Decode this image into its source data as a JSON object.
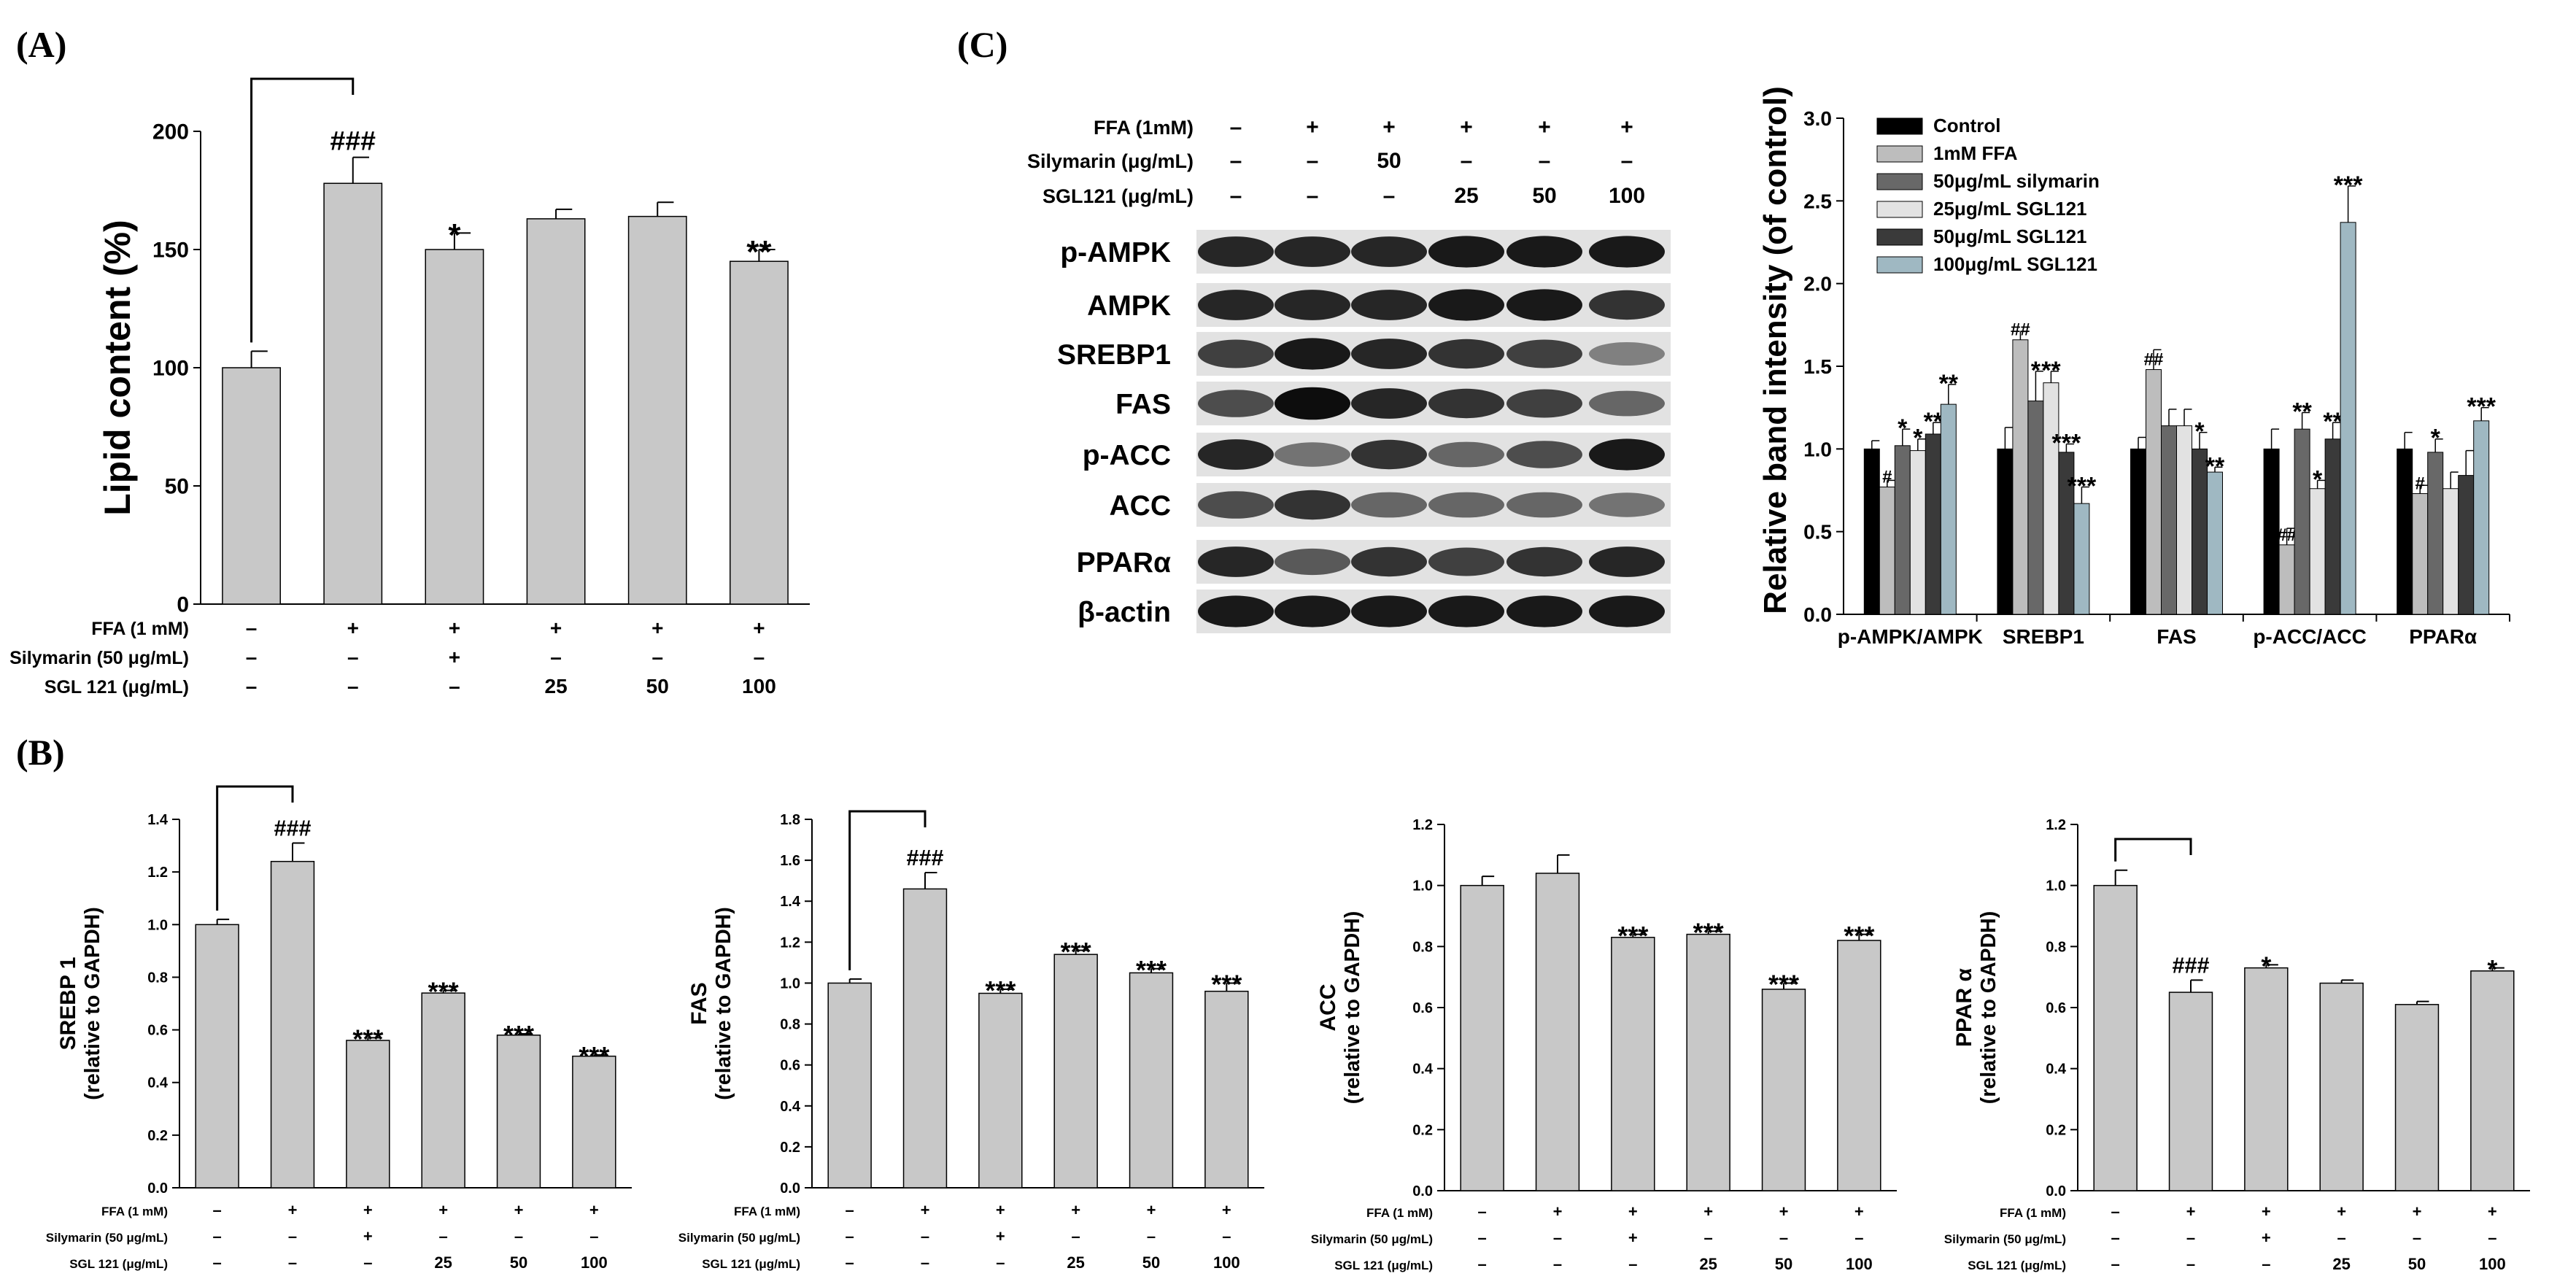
{
  "panels": [
    {
      "label": "(A)"
    },
    {
      "label": "(B)"
    },
    {
      "label": "(C)"
    }
  ],
  "treatment_labels": {
    "ffa": "FFA (1 mM)",
    "silymarin": "Silymarin (50 μg/mL)",
    "sgl": "SGL 121 (μg/mL)"
  },
  "treatment_table": {
    "ffa": [
      "–",
      "+",
      "+",
      "+",
      "+",
      "+"
    ],
    "silymarin": [
      "–",
      "–",
      "+",
      "–",
      "–",
      "–"
    ],
    "sgl": [
      "–",
      "–",
      "–",
      "25",
      "50",
      "100"
    ]
  },
  "blot": {
    "ffa_label": "FFA (1mM)",
    "silymarin_label": "Silymarin (μg/mL)",
    "sgl_label": "SGL121 (μg/mL)",
    "ffa": [
      "–",
      "+",
      "+",
      "+",
      "+",
      "+"
    ],
    "silymarin": [
      "–",
      "–",
      "50",
      "–",
      "–",
      "–"
    ],
    "sgl": [
      "–",
      "–",
      "–",
      "25",
      "50",
      "100"
    ],
    "bands": [
      {
        "name": "p-AMPK",
        "intensity": [
          0.85,
          0.85,
          0.85,
          0.9,
          0.9,
          0.9
        ]
      },
      {
        "name": "AMPK",
        "intensity": [
          0.85,
          0.85,
          0.85,
          0.9,
          0.9,
          0.8
        ]
      },
      {
        "name": "SREBP1",
        "intensity": [
          0.75,
          0.9,
          0.85,
          0.8,
          0.75,
          0.5
        ]
      },
      {
        "name": "FAS",
        "intensity": [
          0.7,
          0.95,
          0.85,
          0.8,
          0.75,
          0.6
        ]
      },
      {
        "name": "p-ACC",
        "intensity": [
          0.85,
          0.55,
          0.8,
          0.6,
          0.7,
          0.9
        ]
      },
      {
        "name": "ACC",
        "intensity": [
          0.7,
          0.8,
          0.6,
          0.6,
          0.6,
          0.55
        ]
      },
      {
        "name": "PPARα",
        "intensity": [
          0.85,
          0.65,
          0.8,
          0.75,
          0.8,
          0.85
        ]
      },
      {
        "name": "β-actin",
        "intensity": [
          0.9,
          0.9,
          0.9,
          0.9,
          0.9,
          0.9
        ]
      }
    ]
  },
  "colors": {
    "bar_gray": "#c8c8c8",
    "axis": "#000000",
    "series_c": [
      "#000000",
      "#bdbdbd",
      "#686868",
      "#e2e2e2",
      "#3a3a3a",
      "#9fb8c2"
    ]
  },
  "chart_data": [
    {
      "id": "A",
      "type": "bar",
      "ylabel": "Lipid content (%)",
      "ylim": [
        0,
        200
      ],
      "yticks": [
        0,
        50,
        100,
        150,
        200
      ],
      "values": [
        100,
        178,
        150,
        163,
        164,
        145
      ],
      "errors": [
        7,
        11,
        7,
        4,
        6,
        5
      ],
      "annotations": [
        "",
        "###",
        "*",
        "",
        "",
        "**"
      ]
    },
    {
      "id": "B1",
      "type": "bar",
      "ylabel": "SREBP 1",
      "ylabel2": "(relative to GAPDH)",
      "ylim": [
        0,
        1.4
      ],
      "yticks": [
        "0.0",
        "0.2",
        "0.4",
        "0.6",
        "0.8",
        "1.0",
        "1.2",
        "1.4"
      ],
      "values": [
        1.0,
        1.24,
        0.56,
        0.74,
        0.58,
        0.5
      ],
      "errors": [
        0.02,
        0.07,
        0.01,
        0.01,
        0.005,
        0.005
      ],
      "annotations": [
        "",
        "###",
        "***",
        "***",
        "***",
        "***"
      ]
    },
    {
      "id": "B2",
      "type": "bar",
      "ylabel": "FAS",
      "ylabel2": "(relative to GAPDH)",
      "ylim": [
        0,
        1.8
      ],
      "yticks": [
        "0.0",
        "0.2",
        "0.4",
        "0.6",
        "0.8",
        "1.0",
        "1.2",
        "1.4",
        "1.6",
        "1.8"
      ],
      "values": [
        1.0,
        1.46,
        0.95,
        1.14,
        1.05,
        0.96
      ],
      "errors": [
        0.02,
        0.08,
        0.02,
        0.02,
        0.02,
        0.04
      ],
      "annotations": [
        "",
        "###",
        "***",
        "***",
        "***",
        "***"
      ]
    },
    {
      "id": "B3",
      "type": "bar",
      "ylabel": "ACC",
      "ylabel2": "(relative to GAPDH)",
      "ylim": [
        0,
        1.2
      ],
      "yticks": [
        "0.0",
        "0.2",
        "0.4",
        "0.6",
        "0.8",
        "1.0",
        "1.2"
      ],
      "values": [
        1.0,
        1.04,
        0.83,
        0.84,
        0.66,
        0.82
      ],
      "errors": [
        0.03,
        0.06,
        0.01,
        0.01,
        0.02,
        0.02
      ],
      "annotations": [
        "",
        "",
        "***",
        "***",
        "***",
        "***"
      ]
    },
    {
      "id": "B4",
      "type": "bar",
      "ylabel": "PPAR α",
      "ylabel2": "(relative to GAPDH)",
      "ylim": [
        0,
        1.2
      ],
      "yticks": [
        "0.0",
        "0.2",
        "0.4",
        "0.6",
        "0.8",
        "1.0",
        "1.2"
      ],
      "values": [
        1.0,
        0.65,
        0.73,
        0.68,
        0.61,
        0.72
      ],
      "errors": [
        0.05,
        0.04,
        0.01,
        0.01,
        0.01,
        0.01
      ],
      "annotations": [
        "",
        "###",
        "*",
        "",
        "",
        "*"
      ]
    },
    {
      "id": "C",
      "type": "bar",
      "ylabel": "Relative band intensity (of control)",
      "ylim": [
        0,
        3.0
      ],
      "yticks": [
        "0.0",
        "0.5",
        "1.0",
        "1.5",
        "2.0",
        "2.5",
        "3.0"
      ],
      "categories": [
        "p-AMPK/AMPK",
        "SREBP1",
        "FAS",
        "p-ACC/ACC",
        "PPARα"
      ],
      "legend_position": "top-left",
      "series": [
        {
          "name": "Control",
          "values": [
            1.0,
            1.0,
            1.0,
            1.0,
            1.0
          ],
          "errors": [
            0.05,
            0.13,
            0.07,
            0.12,
            0.1
          ],
          "annotations": [
            "",
            "",
            "",
            "",
            ""
          ]
        },
        {
          "name": "1mM FFA",
          "values": [
            0.77,
            1.66,
            1.48,
            0.42,
            0.73
          ],
          "errors": [
            0.04,
            0.05,
            0.12,
            0.1,
            0.05
          ],
          "annotations": [
            "#",
            "##",
            "##",
            "##",
            "#"
          ]
        },
        {
          "name": "50μg/mL silymarin",
          "values": [
            1.02,
            1.29,
            1.14,
            1.12,
            0.98
          ],
          "errors": [
            0.1,
            0.18,
            0.1,
            0.1,
            0.08
          ],
          "annotations": [
            "*",
            "*",
            "",
            "**",
            "*"
          ]
        },
        {
          "name": "25μg/mL SGL121",
          "values": [
            0.99,
            1.4,
            1.14,
            0.76,
            0.76
          ],
          "errors": [
            0.07,
            0.07,
            0.1,
            0.05,
            0.1
          ],
          "annotations": [
            "*",
            "**",
            "",
            "*",
            ""
          ]
        },
        {
          "name": "50μg/mL SGL121",
          "values": [
            1.09,
            0.98,
            1.0,
            1.06,
            0.84
          ],
          "errors": [
            0.07,
            0.05,
            0.1,
            0.1,
            0.15
          ],
          "annotations": [
            "**",
            "***",
            "*",
            "**",
            ""
          ]
        },
        {
          "name": "100μg/mL SGL121",
          "values": [
            1.27,
            0.67,
            0.86,
            2.37,
            1.17
          ],
          "errors": [
            0.12,
            0.1,
            0.03,
            0.22,
            0.08
          ],
          "annotations": [
            "**",
            "***",
            "**",
            "***",
            "***"
          ]
        }
      ]
    }
  ]
}
